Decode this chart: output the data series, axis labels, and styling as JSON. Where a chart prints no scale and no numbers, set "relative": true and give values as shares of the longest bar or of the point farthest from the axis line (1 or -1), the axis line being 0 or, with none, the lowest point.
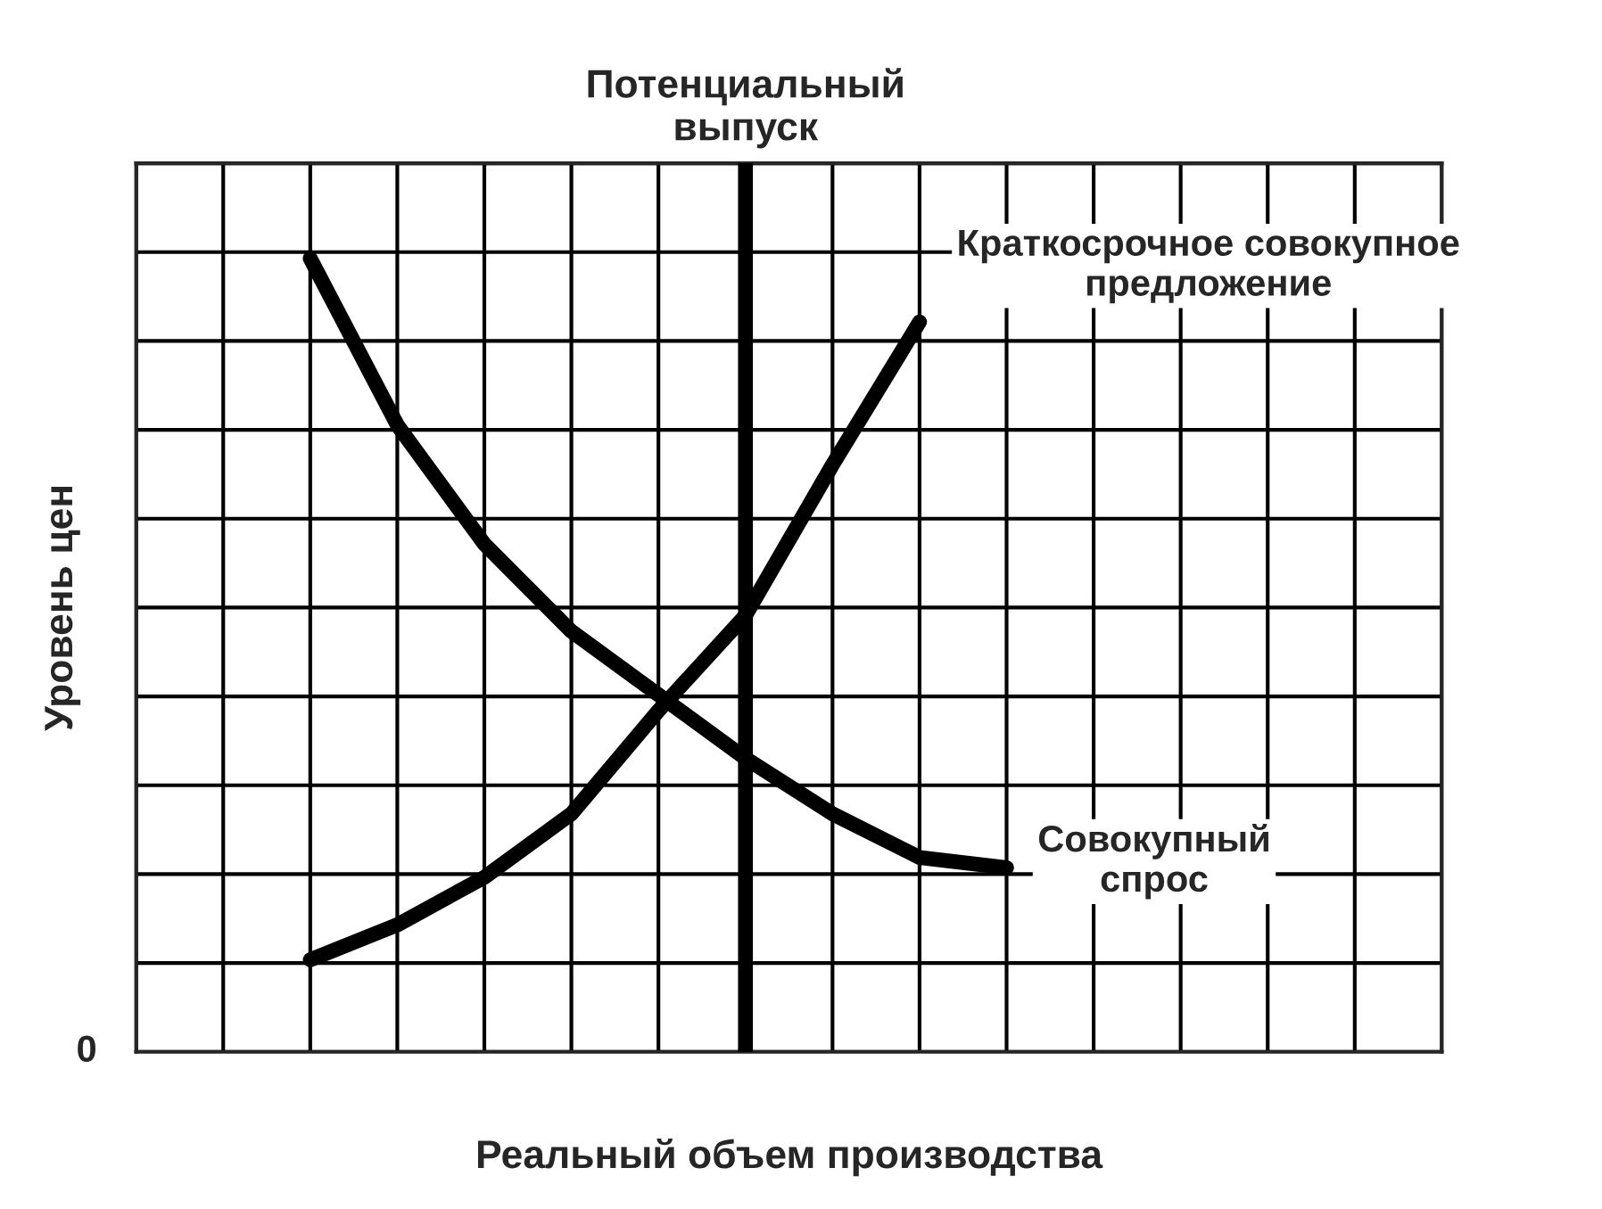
{
  "chart_data": {
    "type": "line",
    "relative": true,
    "xlabel": "Реальный объем производства",
    "ylabel": "Уровень цен",
    "grid": true,
    "categories": [
      null,
      null,
      null,
      null,
      null,
      null,
      null,
      null,
      null,
      null,
      null,
      null,
      null,
      null,
      null,
      null
    ],
    "series": [
      {
        "name": "Краткосрочное совокупное\nпредложение",
        "color": "#000000",
        "values": [
          null,
          null,
          0.116,
          0.16,
          0.22,
          0.3,
          0.43,
          0.55,
          0.74,
          0.92,
          null,
          null,
          null,
          null,
          null,
          null
        ]
      },
      {
        "name": "Совокупный\nспрос",
        "color": "#000000",
        "values": [
          null,
          null,
          1.0,
          0.79,
          0.64,
          0.53,
          0.45,
          0.37,
          0.3,
          0.245,
          0.232,
          null,
          null,
          null,
          null,
          null
        ]
      }
    ],
    "annotations": [
      "Потенциальный\nвыпуск",
      "0"
    ]
  }
}
